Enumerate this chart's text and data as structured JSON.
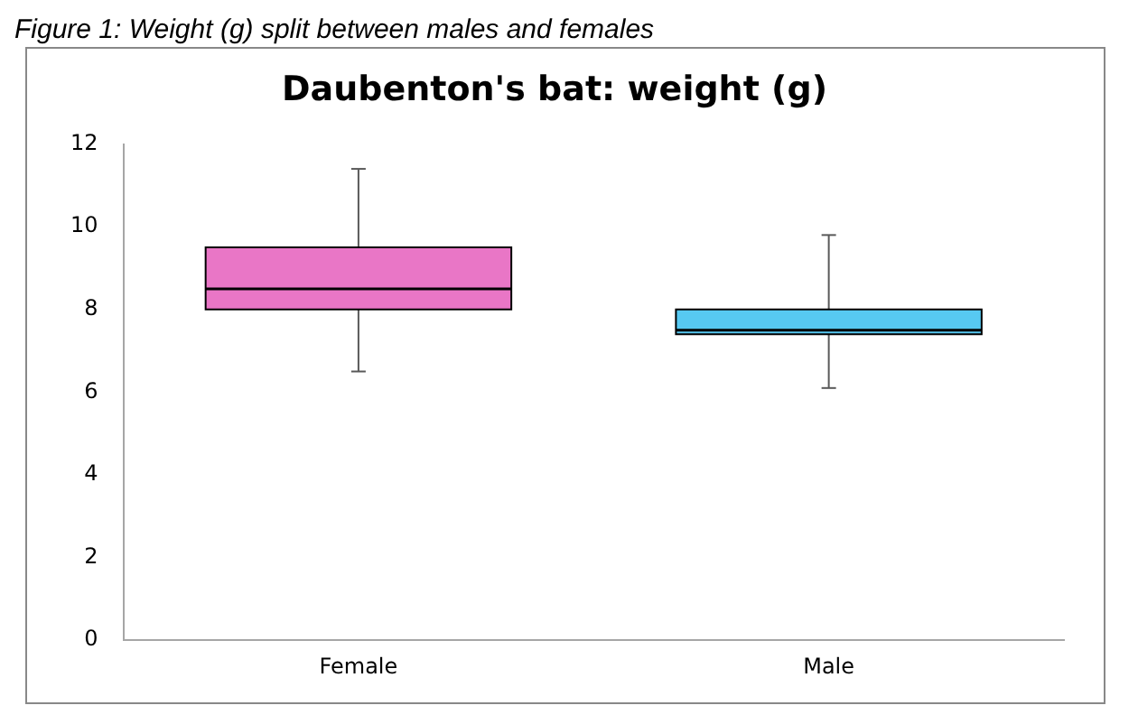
{
  "chart_data": {
    "type": "box",
    "title": "Daubenton's bat: weight (g)",
    "annotations": [
      "Figure 1: Weight (g) split between males and females"
    ],
    "categories": [
      "Female",
      "Male"
    ],
    "boxes": [
      {
        "low": 6.5,
        "q1": 8.0,
        "median": 8.5,
        "q3": 9.5,
        "high": 11.4
      },
      {
        "low": 6.1,
        "q1": 7.4,
        "median": 7.5,
        "q3": 8.0,
        "high": 9.8
      }
    ],
    "colors": [
      "#e976c6",
      "#57c9f2"
    ],
    "ylim": [
      0,
      12
    ],
    "yticks": [
      0,
      2,
      4,
      6,
      8,
      10,
      12
    ],
    "grid": false,
    "legend": false
  }
}
